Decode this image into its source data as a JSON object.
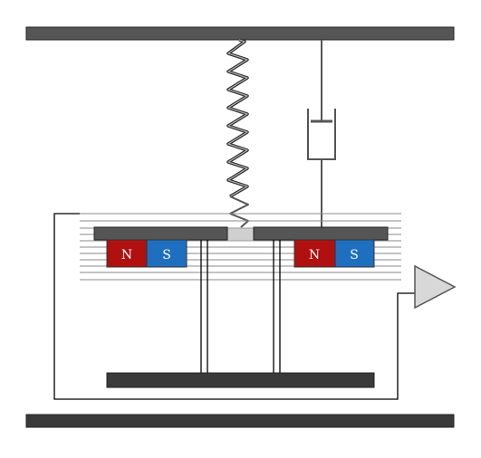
{
  "diagram": {
    "colors": {
      "plate": "#555555",
      "plate_outline": "#222222",
      "dark_plate": "#3a3a3a",
      "wire": "#000000",
      "field_line": "#8a8a8a",
      "north": "#b01010",
      "south": "#1f6fc0",
      "amplifier_fill": "#d8d8d8",
      "spring_fill": "#9a9a9a",
      "background": "#ffffff"
    },
    "magnets": [
      {
        "north_label": "N",
        "south_label": "S"
      },
      {
        "north_label": "N",
        "south_label": "S"
      }
    ],
    "components": {
      "top_support": "ceiling-beam",
      "spring": "coil-spring",
      "damper": "dashpot",
      "amplifier": "triangle-amplifier",
      "bottom_support": "floor-beam"
    }
  }
}
